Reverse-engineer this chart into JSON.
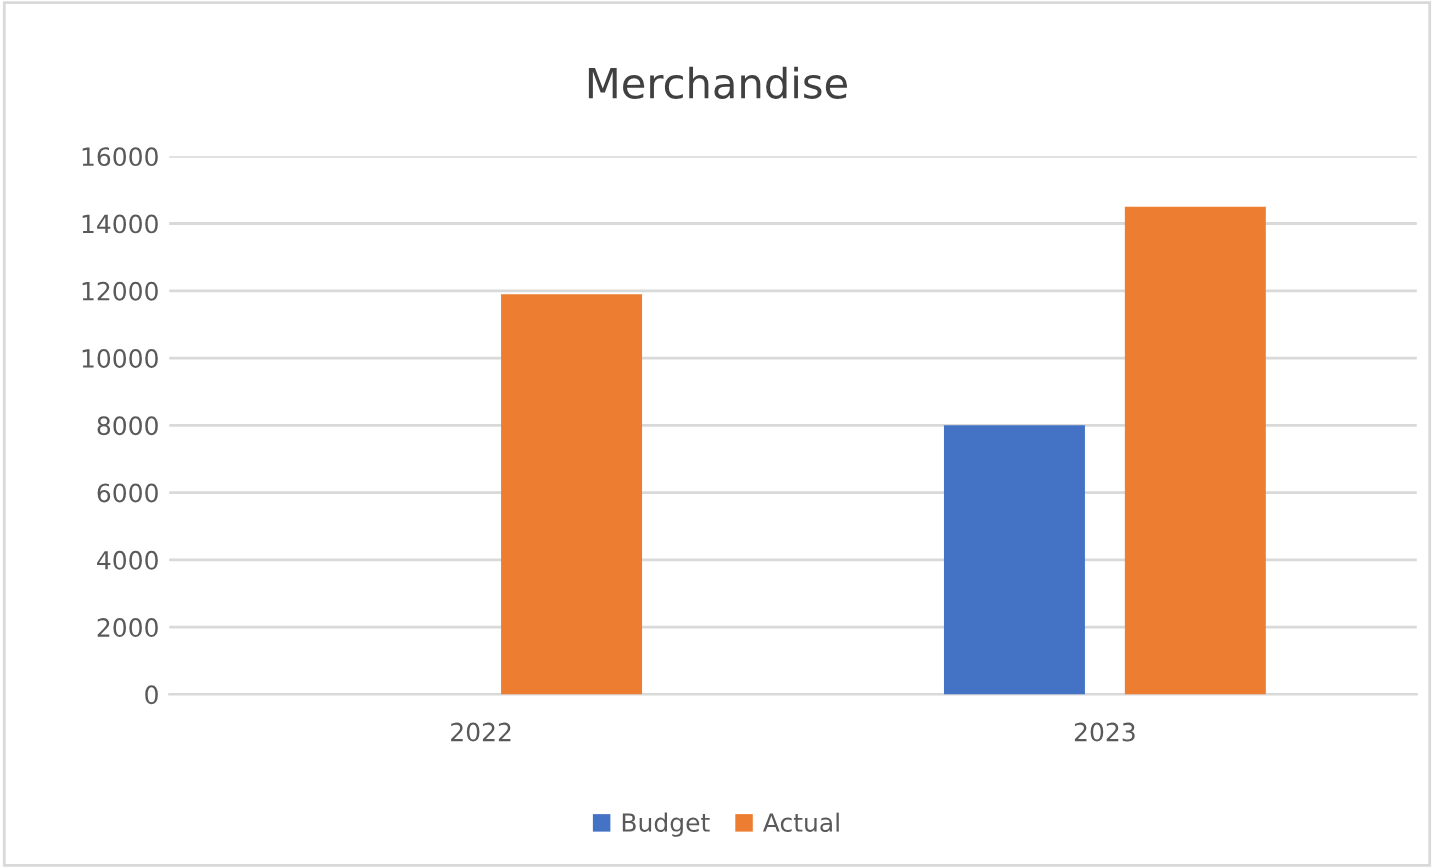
{
  "chart_data": {
    "type": "bar",
    "title": "Merchandise",
    "categories": [
      "2022",
      "2023"
    ],
    "series": [
      {
        "name": "Budget",
        "color": "#4472c4",
        "values": [
          null,
          8000
        ]
      },
      {
        "name": "Actual",
        "color": "#ed7d31",
        "values": [
          11900,
          14500
        ]
      }
    ],
    "ylim": [
      0,
      16000
    ],
    "yticks": [
      0,
      2000,
      4000,
      6000,
      8000,
      10000,
      12000,
      14000,
      16000
    ],
    "grid": "y",
    "legend": "bottom"
  }
}
